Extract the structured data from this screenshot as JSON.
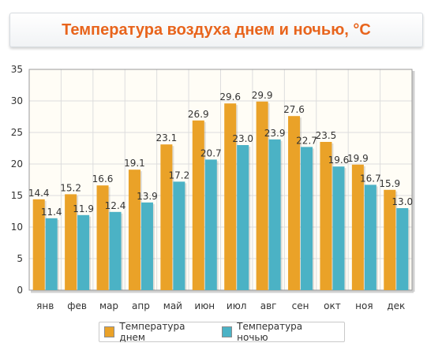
{
  "chart_data": {
    "type": "bar",
    "title": "Температура воздуха днем и ночью, °C",
    "categories": [
      "янв",
      "фев",
      "мар",
      "апр",
      "май",
      "июн",
      "июл",
      "авг",
      "сен",
      "окт",
      "ноя",
      "дек"
    ],
    "series": [
      {
        "name": "Температура днем",
        "color": "#eaa228",
        "values": [
          14.4,
          15.2,
          16.6,
          19.1,
          23.1,
          26.9,
          29.6,
          29.9,
          27.6,
          23.5,
          19.9,
          15.9
        ]
      },
      {
        "name": "Температура ночью",
        "color": "#4bb2c5",
        "values": [
          11.4,
          11.9,
          12.4,
          13.9,
          17.2,
          20.7,
          23.0,
          23.9,
          22.7,
          19.6,
          16.7,
          13.0
        ]
      }
    ],
    "ylim": [
      0,
      35
    ],
    "yticks": [
      0,
      5,
      10,
      15,
      20,
      25,
      30,
      35
    ],
    "grid": true,
    "legend_position": "bottom"
  },
  "colors": {
    "title": "#e8641c",
    "plot_background": "#fffdf6",
    "grid": "#dddddd"
  }
}
